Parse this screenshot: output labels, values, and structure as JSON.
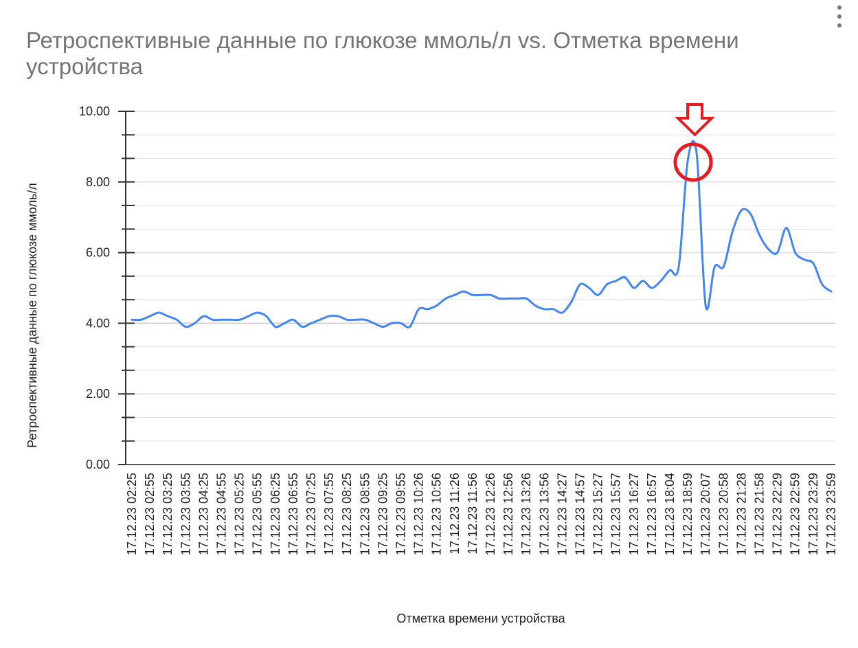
{
  "header": {
    "title": "Ретроспективные данные по глюкозе ммоль/л vs. Отметка времени устройства",
    "menu_icon": "more-vert-icon"
  },
  "colors": {
    "line": "#4285f4",
    "annotation": "#e8191f",
    "grid": "#e0e0e0",
    "baseline": "#cccccc",
    "axis": "#333333",
    "title": "#757575"
  },
  "chart_data": {
    "type": "line",
    "title": "Ретроспективные данные по глюкозе ммоль/л vs. Отметка времени устройства",
    "xlabel": "Отметка времени устройства",
    "ylabel": "Ретроспективные данные по глюкозе ммоль/л",
    "ylim": [
      0,
      10
    ],
    "yticks": [
      "0.00",
      "2.00",
      "4.00",
      "6.00",
      "8.00",
      "10.00"
    ],
    "y_minor_step": 0.6667,
    "grid": true,
    "legend": "none",
    "categories": [
      "17.12.23 02:25",
      "17.12.23 02:55",
      "17.12.23 03:25",
      "17.12.23 03:55",
      "17.12.23 04:25",
      "17.12.23 04:55",
      "17.12.23 05:25",
      "17.12.23 05:55",
      "17.12.23 06:25",
      "17.12.23 06:55",
      "17.12.23 07:25",
      "17.12.23 07:55",
      "17.12.23 08:25",
      "17.12.23 08:55",
      "17.12.23 09:25",
      "17.12.23 09:55",
      "17.12.23 10:26",
      "17.12.23 10:56",
      "17.12.23 11:26",
      "17.12.23 11:56",
      "17.12.23 12:26",
      "17.12.23 12:56",
      "17.12.23 13:26",
      "17.12.23 13:56",
      "17.12.23 14:27",
      "17.12.23 14:57",
      "17.12.23 15:27",
      "17.12.23 15:57",
      "17.12.23 16:27",
      "17.12.23 16:57",
      "17.12.23 18:04",
      "17.12.23 18:59",
      "17.12.23 20:07",
      "17.12.23 20:58",
      "17.12.23 21:28",
      "17.12.23 21:58",
      "17.12.23 22:29",
      "17.12.23 22:59",
      "17.12.23 23:29",
      "17.12.23 23:59"
    ],
    "x_positions": [
      0,
      0.5,
      1,
      1.5,
      2,
      2.5,
      3,
      3.5,
      4,
      4.5,
      5,
      5.5,
      6,
      6.5,
      7,
      7.5,
      8,
      8.5,
      9,
      9.5,
      10,
      10.5,
      11,
      11.5,
      12,
      12.5,
      13,
      13.5,
      14,
      14.5,
      15,
      15.5,
      16,
      16.5,
      17,
      17.5,
      18,
      18.5,
      19,
      19.5,
      20,
      20.5,
      21,
      21.5,
      22,
      22.5,
      23,
      23.5,
      24,
      24.5,
      25,
      25.5,
      26,
      26.5,
      27,
      27.5,
      28,
      28.5,
      29,
      29.5,
      30,
      30.5,
      31,
      31.5,
      32,
      32.5,
      33,
      33.5,
      34,
      34.5,
      35,
      35.5,
      36,
      36.5,
      37,
      37.5,
      38,
      38.5,
      39
    ],
    "values": [
      4.1,
      4.1,
      4.2,
      4.3,
      4.2,
      4.1,
      3.9,
      4.0,
      4.2,
      4.1,
      4.1,
      4.1,
      4.1,
      4.2,
      4.3,
      4.2,
      3.9,
      4.0,
      4.1,
      3.9,
      4.0,
      4.1,
      4.2,
      4.2,
      4.1,
      4.1,
      4.1,
      4.0,
      3.9,
      4.0,
      4.0,
      3.9,
      4.4,
      4.4,
      4.5,
      4.7,
      4.8,
      4.9,
      4.8,
      4.8,
      4.8,
      4.7,
      4.7,
      4.7,
      4.7,
      4.5,
      4.4,
      4.4,
      4.3,
      4.6,
      5.1,
      5.0,
      4.8,
      5.1,
      5.2,
      5.3,
      5.0,
      5.2,
      5.0,
      5.2,
      5.5,
      5.6,
      8.6,
      8.8,
      4.5,
      5.6,
      5.6,
      6.6,
      7.2,
      7.1,
      6.5,
      6.1,
      6.0,
      6.7,
      6.0,
      5.8,
      5.7,
      5.1,
      4.9
    ],
    "annotations": [
      {
        "type": "arrow-down",
        "color": "#e8191f",
        "target_category": "17.12.23 18:59"
      },
      {
        "type": "circle",
        "color": "#e8191f",
        "target_value": 8.8
      }
    ]
  }
}
